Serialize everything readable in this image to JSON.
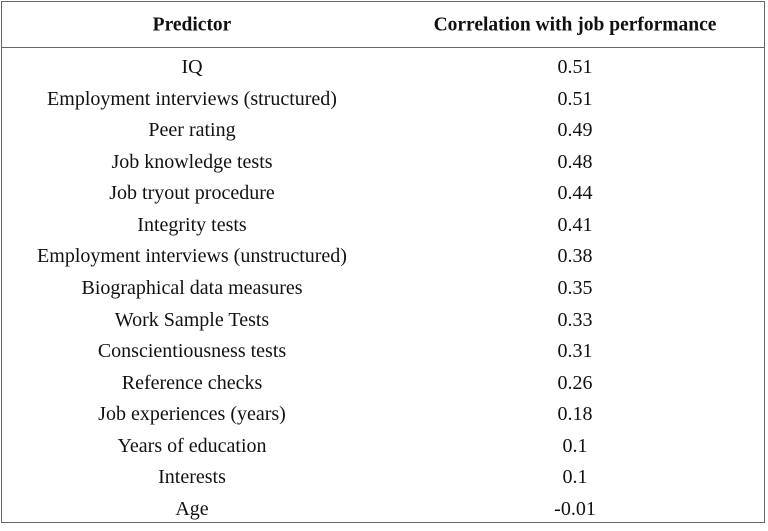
{
  "table": {
    "header": [
      "Predictor",
      "Correlation with job performance"
    ],
    "rows": [
      [
        "IQ",
        "0.51"
      ],
      [
        "Employment interviews (structured)",
        "0.51"
      ],
      [
        "Peer rating",
        "0.49"
      ],
      [
        "Job knowledge tests",
        "0.48"
      ],
      [
        "Job tryout procedure",
        "0.44"
      ],
      [
        "Integrity tests",
        "0.41"
      ],
      [
        "Employment interviews (unstructured)",
        "0.38"
      ],
      [
        "Biographical data measures",
        "0.35"
      ],
      [
        "Work Sample Tests",
        "0.33"
      ],
      [
        "Conscientiousness tests",
        "0.31"
      ],
      [
        "Reference checks",
        "0.26"
      ],
      [
        "Job experiences (years)",
        "0.18"
      ],
      [
        "Years of education",
        "0.1"
      ],
      [
        "Interests",
        "0.1"
      ],
      [
        "Age",
        "-0.01"
      ]
    ]
  }
}
